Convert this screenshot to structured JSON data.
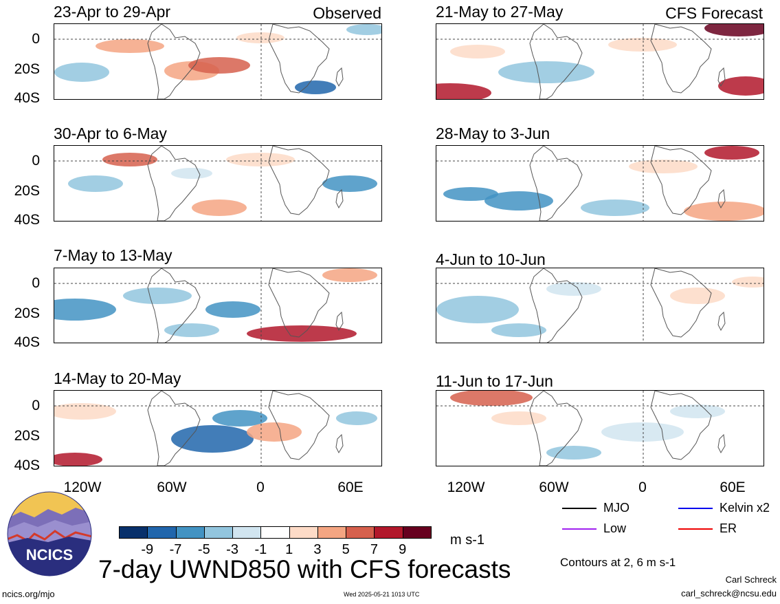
{
  "header": {
    "left_tag": "Observed",
    "right_tag": "CFS Forecast"
  },
  "panels": [
    {
      "title": "23-Apr to 29-Apr",
      "column": "observed"
    },
    {
      "title": "30-Apr to 6-May",
      "column": "observed"
    },
    {
      "title": "7-May to 13-May",
      "column": "observed"
    },
    {
      "title": "14-May to 20-May",
      "column": "observed"
    },
    {
      "title": "21-May to 27-May",
      "column": "forecast"
    },
    {
      "title": "28-May to 3-Jun",
      "column": "forecast"
    },
    {
      "title": "4-Jun to 10-Jun",
      "column": "forecast"
    },
    {
      "title": "11-Jun to 17-Jun",
      "column": "forecast"
    }
  ],
  "axes": {
    "lat_labels": [
      "0",
      "20S",
      "40S"
    ],
    "lon_labels": [
      "120W",
      "60W",
      "0",
      "60E"
    ]
  },
  "colorbar": {
    "labels": [
      "-9",
      "-7",
      "-5",
      "-3",
      "-1",
      "1",
      "3",
      "5",
      "7",
      "9"
    ],
    "units": "m s-1",
    "colors": [
      "#08306b",
      "#2166ac",
      "#4393c3",
      "#92c5de",
      "#d1e5f0",
      "#ffffff",
      "#fddbc7",
      "#f4a582",
      "#d6604d",
      "#b2182b",
      "#67001f"
    ]
  },
  "legend": {
    "items": [
      {
        "label": "MJO",
        "color": "#000000"
      },
      {
        "label": "Kelvin x2",
        "color": "#0000ee"
      },
      {
        "label": "Low",
        "color": "#a020f0"
      },
      {
        "label": "ER",
        "color": "#ee0000"
      }
    ],
    "contours_note": "Contours at 2, 6 m s-1"
  },
  "footer": {
    "main_title": "7-day UWND850 with CFS forecasts",
    "logo_text": "NCICS",
    "url": "ncics.org/mjo",
    "timestamp": "Wed 2025-05-21 1013 UTC",
    "author": "Carl Schreck",
    "email": "carl_schreck@ncsu.edu"
  }
}
